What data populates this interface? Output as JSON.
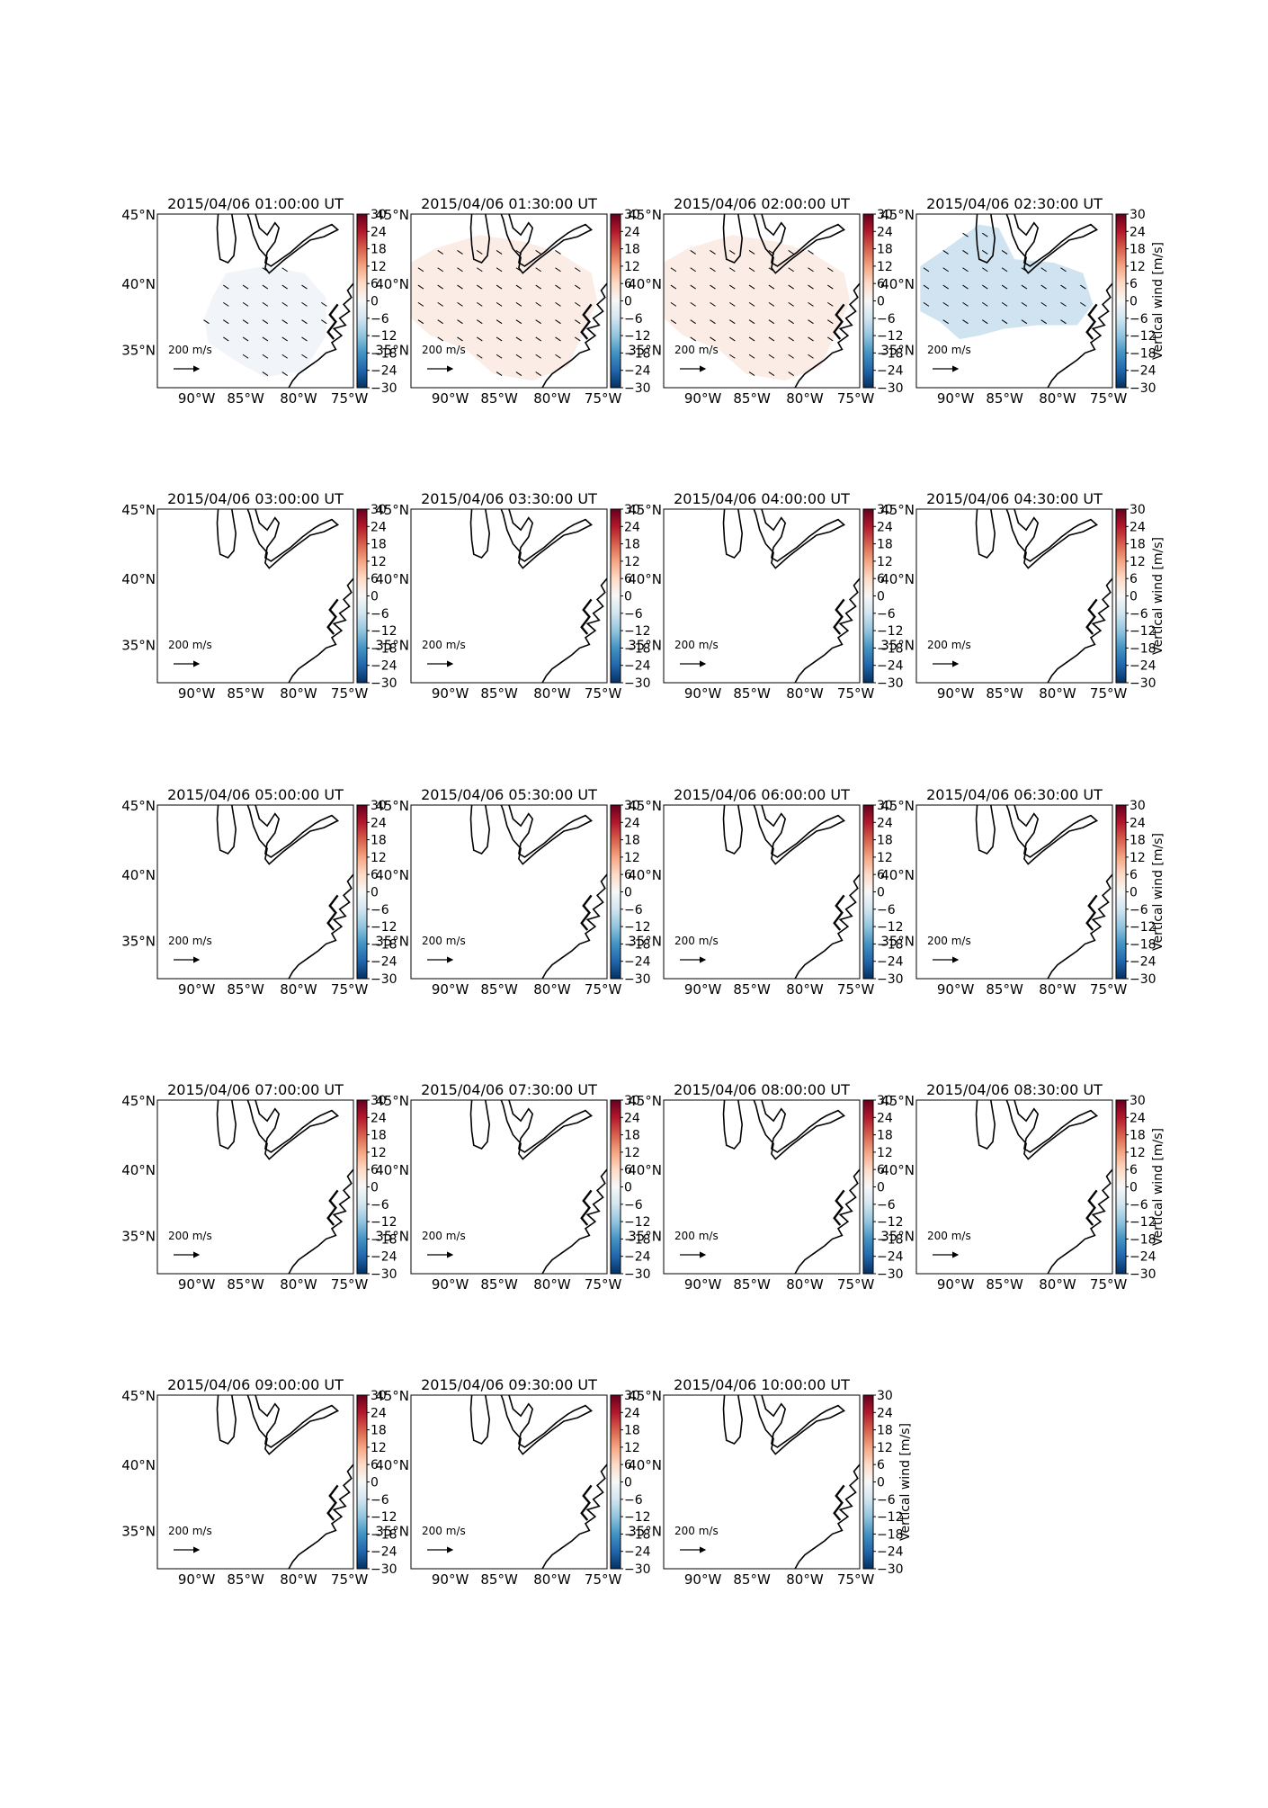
{
  "figure": {
    "colorbar_label": "Vertical wind [m/s]",
    "colorbar_ticks": [
      "30",
      "24",
      "18",
      "12",
      "6",
      "0",
      "−6",
      "−12",
      "−18",
      "−24",
      "−30"
    ],
    "lat_labels": [
      "45°N",
      "40°N",
      "35°N"
    ],
    "lon_labels": [
      "90°W",
      "85°W",
      "80°W",
      "75°W"
    ],
    "scale_label": "200 m/s",
    "colors": {
      "warm_fill": "#fbece6",
      "cool_fill": "#cfe3f1",
      "near_zero_fill": "#f1f4f8",
      "colormap": [
        "#053061",
        "#2166ac",
        "#4393c3",
        "#92c5de",
        "#d1e5f0",
        "#f7f7f7",
        "#fddbc7",
        "#f4a582",
        "#d6604d",
        "#b2182b",
        "#67001f"
      ]
    }
  },
  "panels": [
    {
      "title": "2015/04/06 01:00:00 UT",
      "field": "near_zero"
    },
    {
      "title": "2015/04/06 01:30:00 UT",
      "field": "warm"
    },
    {
      "title": "2015/04/06 02:00:00 UT",
      "field": "warm"
    },
    {
      "title": "2015/04/06 02:30:00 UT",
      "field": "cool"
    },
    {
      "title": "2015/04/06 03:00:00 UT",
      "field": "none"
    },
    {
      "title": "2015/04/06 03:30:00 UT",
      "field": "none"
    },
    {
      "title": "2015/04/06 04:00:00 UT",
      "field": "none"
    },
    {
      "title": "2015/04/06 04:30:00 UT",
      "field": "none"
    },
    {
      "title": "2015/04/06 05:00:00 UT",
      "field": "none"
    },
    {
      "title": "2015/04/06 05:30:00 UT",
      "field": "none"
    },
    {
      "title": "2015/04/06 06:00:00 UT",
      "field": "none"
    },
    {
      "title": "2015/04/06 06:30:00 UT",
      "field": "none"
    },
    {
      "title": "2015/04/06 07:00:00 UT",
      "field": "none"
    },
    {
      "title": "2015/04/06 07:30:00 UT",
      "field": "none"
    },
    {
      "title": "2015/04/06 08:00:00 UT",
      "field": "none"
    },
    {
      "title": "2015/04/06 08:30:00 UT",
      "field": "none"
    },
    {
      "title": "2015/04/06 09:00:00 UT",
      "field": "none"
    },
    {
      "title": "2015/04/06 09:30:00 UT",
      "field": "none"
    },
    {
      "title": "2015/04/06 10:00:00 UT",
      "field": "none"
    }
  ]
}
